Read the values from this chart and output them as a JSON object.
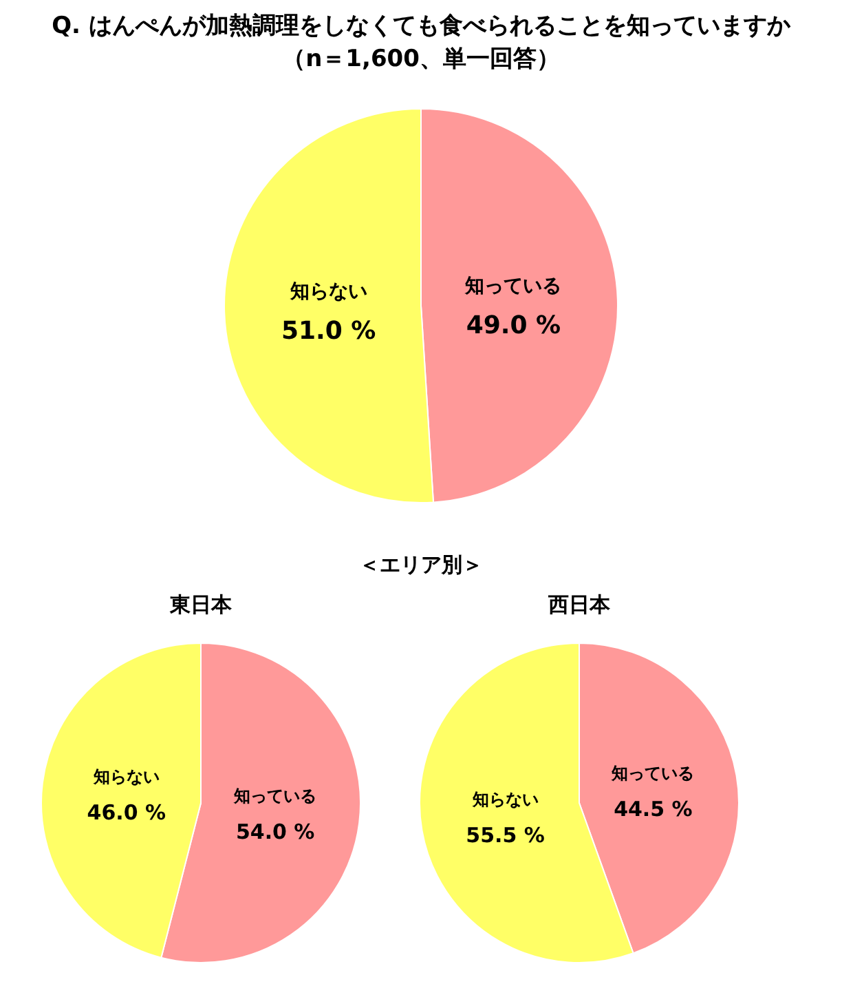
{
  "chart_data": [
    {
      "type": "pie",
      "title": "Q. はんぺんが加熱調理をしなくても食べられることを知っていますか",
      "subtitle": "（n＝1,600、単一回答）",
      "categories": [
        "知っている",
        "知らない"
      ],
      "values": [
        49.0,
        51.0
      ],
      "value_labels": [
        "49.0 %",
        "51.0 %"
      ],
      "colors": [
        "#ff9999",
        "#ffff66"
      ]
    },
    {
      "type": "pie",
      "title": "東日本",
      "annotations": [
        "＜エリア別＞"
      ],
      "categories": [
        "知っている",
        "知らない"
      ],
      "values": [
        54.0,
        46.0
      ],
      "value_labels": [
        "54.0 %",
        "46.0 %"
      ],
      "colors": [
        "#ff9999",
        "#ffff66"
      ]
    },
    {
      "type": "pie",
      "title": "西日本",
      "categories": [
        "知っている",
        "知らない"
      ],
      "values": [
        44.5,
        55.5
      ],
      "value_labels": [
        "44.5 %",
        "55.5 %"
      ],
      "colors": [
        "#ff9999",
        "#ffff66"
      ]
    }
  ]
}
